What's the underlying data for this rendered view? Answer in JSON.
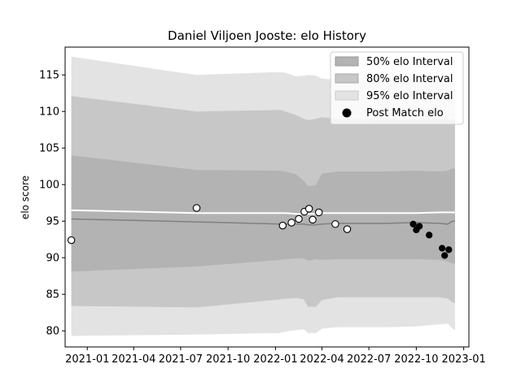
{
  "chart_data": {
    "type": "area",
    "title": "Daniel Viljoen Jooste: elo History",
    "xlabel": "",
    "ylabel": "elo score",
    "xlim": [
      "2020-11-19",
      "2023-01-11"
    ],
    "ylim": [
      77.8,
      118.8
    ],
    "x_ticks": [
      "2021-01",
      "2021-04",
      "2021-07",
      "2021-10",
      "2022-01",
      "2022-04",
      "2022-07",
      "2022-10",
      "2023-01"
    ],
    "y_ticks": [
      80,
      85,
      90,
      95,
      100,
      105,
      110,
      115
    ],
    "grid": false,
    "legend": {
      "position": "top-right",
      "entries": [
        "50% elo Interval",
        "80% elo Interval",
        "95% elo Interval",
        "Post Match elo"
      ]
    },
    "colors": {
      "band_50": "#b3b3b3",
      "band_80": "#c7c7c7",
      "band_95": "#e3e3e3",
      "mean_line": "#808080",
      "upper_line": "#ffffff"
    },
    "band_dates": [
      "2020-12-01",
      "2021-08-01",
      "2022-01-10",
      "2022-01-20",
      "2022-02-10",
      "2022-02-25",
      "2022-03-05",
      "2022-03-20",
      "2022-04-01",
      "2022-05-01",
      "2022-08-01",
      "2022-10-01",
      "2022-11-15",
      "2022-12-01",
      "2022-12-10",
      "2022-12-15"
    ],
    "series": [
      {
        "name": "95% elo Interval",
        "upper": [
          117.5,
          115.0,
          115.4,
          115.3,
          114.8,
          114.9,
          115.0,
          114.9,
          114.5,
          114.3,
          114.3,
          114.3,
          114.3,
          114.3,
          114.3,
          114.3
        ],
        "lower": [
          79.3,
          79.5,
          79.7,
          79.9,
          80.1,
          80.2,
          79.7,
          79.7,
          80.3,
          80.5,
          80.5,
          80.6,
          80.9,
          81.0,
          80.3,
          80.1
        ]
      },
      {
        "name": "80% elo Interval",
        "upper": [
          112.1,
          110.0,
          110.2,
          110.0,
          109.5,
          109.0,
          108.8,
          109.0,
          109.2,
          109.0,
          108.9,
          108.9,
          108.9,
          108.9,
          108.9,
          108.9
        ],
        "lower": [
          83.4,
          83.2,
          84.3,
          84.4,
          84.5,
          84.3,
          83.3,
          83.3,
          84.2,
          84.6,
          84.6,
          84.6,
          84.6,
          84.4,
          83.9,
          83.8
        ]
      },
      {
        "name": "50% elo Interval",
        "upper": [
          104.0,
          102.0,
          101.9,
          101.8,
          101.4,
          100.5,
          99.8,
          99.9,
          101.5,
          101.8,
          101.8,
          101.9,
          101.8,
          101.9,
          102.2,
          102.2
        ],
        "lower": [
          88.1,
          88.8,
          89.7,
          89.8,
          89.9,
          89.9,
          89.6,
          89.8,
          89.7,
          89.8,
          89.8,
          89.8,
          89.7,
          89.5,
          89.2,
          89.2
        ]
      },
      {
        "name": "mean",
        "values": [
          95.3,
          94.9,
          94.6,
          94.6,
          94.6,
          94.6,
          94.5,
          94.5,
          94.6,
          94.7,
          94.7,
          94.8,
          94.7,
          94.6,
          95.0,
          95.0
        ]
      },
      {
        "name": "upper",
        "values": [
          96.5,
          96.1,
          96.1,
          96.1,
          96.0,
          96.0,
          96.0,
          96.0,
          96.1,
          96.1,
          96.1,
          96.1,
          96.2,
          96.2,
          96.2,
          96.2
        ]
      }
    ],
    "points": [
      {
        "x": "2020-12-01",
        "y": 92.4,
        "fill": "#ffffff"
      },
      {
        "x": "2021-08-01",
        "y": 96.8,
        "fill": "#ffffff"
      },
      {
        "x": "2022-01-15",
        "y": 94.4,
        "fill": "#ffffff"
      },
      {
        "x": "2022-02-01",
        "y": 94.8,
        "fill": "#ffffff"
      },
      {
        "x": "2022-02-15",
        "y": 95.3,
        "fill": "#ffffff"
      },
      {
        "x": "2022-02-26",
        "y": 96.3,
        "fill": "#ffffff"
      },
      {
        "x": "2022-03-07",
        "y": 96.7,
        "fill": "#ffffff"
      },
      {
        "x": "2022-03-14",
        "y": 95.2,
        "fill": "#ffffff"
      },
      {
        "x": "2022-03-26",
        "y": 96.2,
        "fill": "#ffffff"
      },
      {
        "x": "2022-04-27",
        "y": 94.6,
        "fill": "#ffffff"
      },
      {
        "x": "2022-05-20",
        "y": 93.9,
        "fill": "#ffffff"
      },
      {
        "x": "2022-09-25",
        "y": 94.6,
        "fill": "#000000"
      },
      {
        "x": "2022-10-01",
        "y": 93.8,
        "fill": "#000000"
      },
      {
        "x": "2022-10-07",
        "y": 94.3,
        "fill": "#000000"
      },
      {
        "x": "2022-10-26",
        "y": 93.1,
        "fill": "#000000"
      },
      {
        "x": "2022-11-20",
        "y": 91.3,
        "fill": "#000000"
      },
      {
        "x": "2022-11-25",
        "y": 90.3,
        "fill": "#000000"
      },
      {
        "x": "2022-12-03",
        "y": 91.1,
        "fill": "#000000"
      }
    ]
  }
}
